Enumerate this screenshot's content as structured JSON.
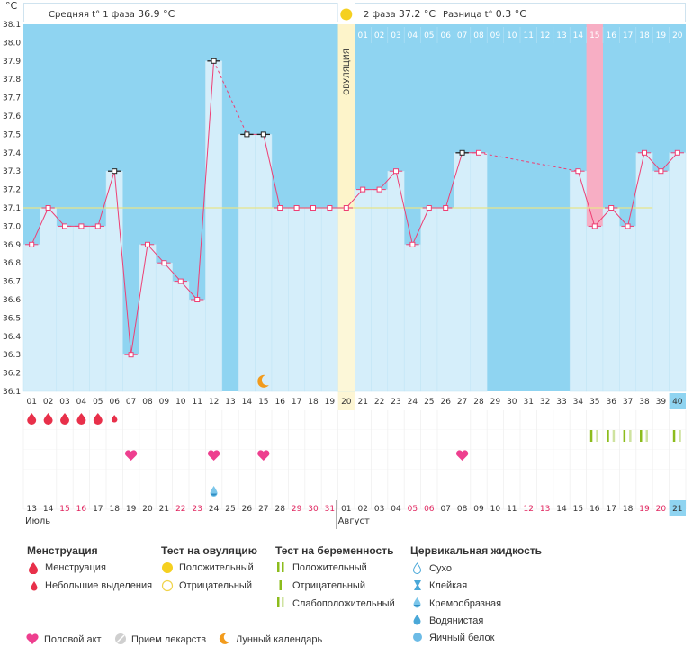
{
  "header": {
    "unit": "°C",
    "phase1_label": "Средняя t° 1 фаза",
    "phase1_value": "36.9 °C",
    "phase2_label": "2 фаза",
    "phase2_value": "37.2 °C",
    "diff_label": "Разница t°",
    "diff_value": "0.3 °C",
    "ovulation_label": "ОВУЛЯЦИЯ"
  },
  "chart_data": {
    "type": "line",
    "title": "",
    "ylabel": "°C",
    "ylim": [
      36.1,
      38.1
    ],
    "yticks": [
      "38.1",
      "38.0",
      "37.9",
      "37.8",
      "37.7",
      "37.6",
      "37.5",
      "37.4",
      "37.3",
      "37.2",
      "37.1",
      "37.0",
      "36.9",
      "36.8",
      "36.7",
      "36.6",
      "36.5",
      "36.4",
      "36.3",
      "36.2",
      "36.1"
    ],
    "cycle_days": [
      "01",
      "02",
      "03",
      "04",
      "05",
      "06",
      "07",
      "08",
      "09",
      "10",
      "11",
      "12",
      "13",
      "14",
      "15",
      "16",
      "17",
      "18",
      "19",
      "20",
      "21",
      "22",
      "23",
      "24",
      "25",
      "26",
      "27",
      "28",
      "29",
      "30",
      "31",
      "32",
      "33",
      "34",
      "35",
      "36",
      "37",
      "38",
      "39",
      "40"
    ],
    "temperatures": [
      36.9,
      37.1,
      37.0,
      37.0,
      37.0,
      37.3,
      36.3,
      36.9,
      36.8,
      36.7,
      36.6,
      37.9,
      null,
      37.5,
      37.5,
      37.1,
      37.1,
      37.1,
      37.1,
      37.1,
      37.2,
      37.2,
      37.3,
      36.9,
      37.1,
      37.1,
      37.4,
      37.4,
      null,
      null,
      null,
      null,
      null,
      37.3,
      37.0,
      37.1,
      37.0,
      37.4,
      37.3,
      37.4
    ],
    "coverline": 37.1,
    "ovulation_day": 20,
    "highlighted_days": [
      35
    ],
    "phase2_day_labels": [
      "01",
      "02",
      "03",
      "04",
      "05",
      "06",
      "07",
      "08",
      "09",
      "10",
      "11",
      "12",
      "13",
      "14",
      "15",
      "16",
      "17",
      "18",
      "19",
      "20"
    ],
    "dates": [
      "13",
      "14",
      "15",
      "16",
      "17",
      "18",
      "19",
      "20",
      "21",
      "22",
      "23",
      "24",
      "25",
      "26",
      "27",
      "28",
      "29",
      "30",
      "31",
      "01",
      "02",
      "03",
      "04",
      "05",
      "06",
      "07",
      "08",
      "09",
      "10",
      "11",
      "12",
      "13",
      "14",
      "15",
      "16",
      "17",
      "18",
      "19",
      "20",
      "21"
    ],
    "date_red": [
      false,
      false,
      true,
      true,
      false,
      false,
      false,
      false,
      false,
      true,
      true,
      false,
      false,
      false,
      false,
      false,
      true,
      true,
      true,
      false,
      false,
      false,
      false,
      true,
      true,
      false,
      false,
      false,
      false,
      false,
      true,
      true,
      false,
      false,
      false,
      false,
      false,
      true,
      true,
      false
    ],
    "months": [
      "Июль",
      "Август"
    ],
    "menstruation_days": [
      1,
      2,
      3,
      4,
      5
    ],
    "spotting_days": [
      6
    ],
    "intercourse_days": [
      7,
      12,
      15,
      27
    ],
    "lunar_day": 15,
    "cervical_day": 12,
    "pregnancy_test_days": [
      35,
      36,
      37,
      38,
      40
    ],
    "current_day": 40
  },
  "legend": {
    "menstruation": {
      "title": "Менструация",
      "items": [
        "Менструация",
        "Небольшие выделения"
      ]
    },
    "ovulation_test": {
      "title": "Тест на овуляцию",
      "items": [
        "Положительный",
        "Отрицательный"
      ]
    },
    "pregnancy_test": {
      "title": "Тест на беременность",
      "items": [
        "Положительный",
        "Отрицательный",
        "Слабоположительный"
      ]
    },
    "cervical": {
      "title": "Цервикальная жидкость",
      "items": [
        "Сухо",
        "Клейкая",
        "Кремообразная",
        "Водянистая",
        "Яичный белок"
      ]
    },
    "bottom": [
      "Половой акт",
      "Прием лекарств",
      "Лунный календарь"
    ]
  },
  "colors": {
    "blue_bg": "#8fd4f1",
    "bar": "#d5eefa",
    "line": "#ee3f74",
    "ovulation": "#f9eb9c",
    "highlight": "#f7aec4",
    "current": "#8fd4f1",
    "green": "#8cbc1c",
    "heart": "#ee3f8f",
    "drop": "#e8304a"
  }
}
